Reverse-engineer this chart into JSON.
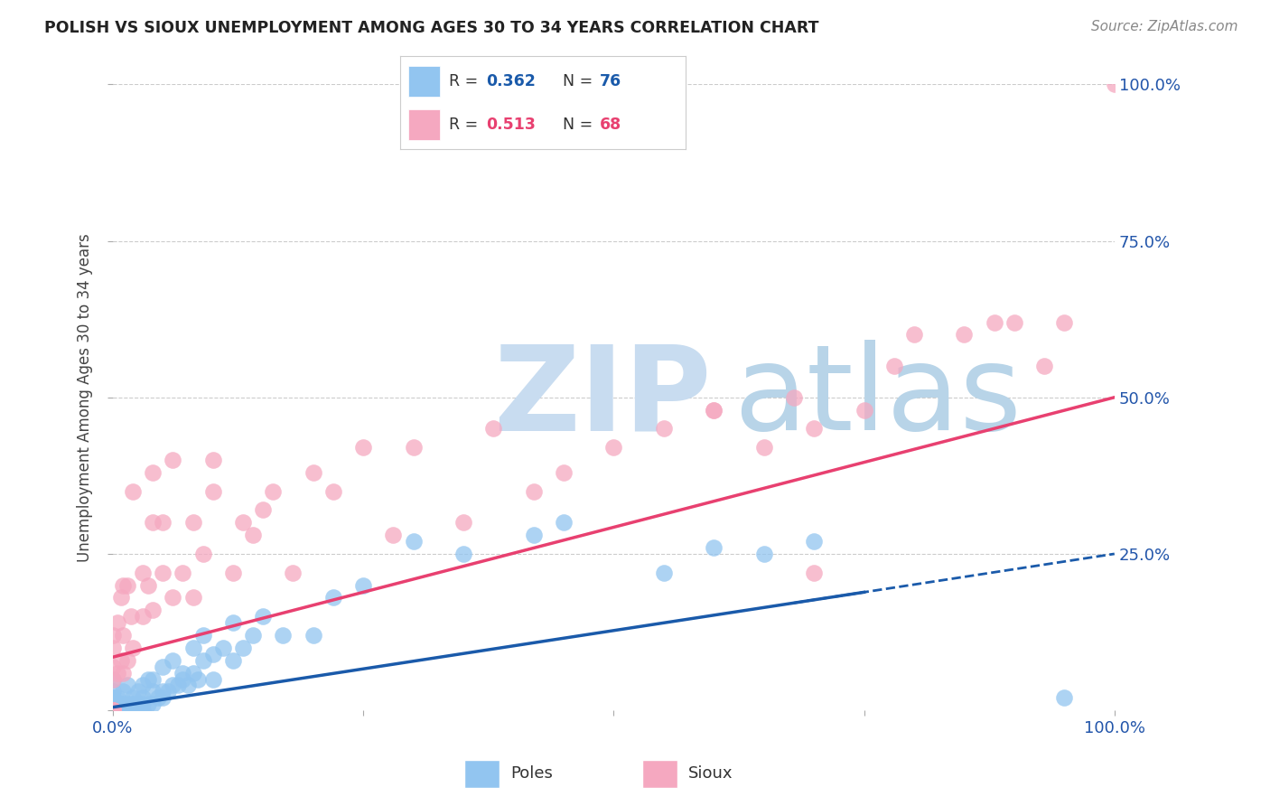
{
  "title": "POLISH VS SIOUX UNEMPLOYMENT AMONG AGES 30 TO 34 YEARS CORRELATION CHART",
  "source": "Source: ZipAtlas.com",
  "ylabel": "Unemployment Among Ages 30 to 34 years",
  "poles_R": 0.362,
  "poles_N": 76,
  "sioux_R": 0.513,
  "sioux_N": 68,
  "xlim": [
    0.0,
    1.0
  ],
  "ylim": [
    0.0,
    1.0
  ],
  "poles_color": "#92C5F0",
  "sioux_color": "#F5A8C0",
  "poles_line_color": "#1A5AAA",
  "sioux_line_color": "#E84070",
  "background_color": "#FFFFFF",
  "watermark_zip": "ZIP",
  "watermark_atlas": "atlas",
  "watermark_color_zip": "#C8DCF0",
  "watermark_color_atlas": "#B8D4E8",
  "poles_line_intercept": 0.005,
  "poles_line_slope": 0.245,
  "sioux_line_intercept": 0.085,
  "sioux_line_slope": 0.415,
  "poles_x": [
    0.0,
    0.0,
    0.0,
    0.0,
    0.0,
    0.0,
    0.0,
    0.0,
    0.0,
    0.0,
    0.0,
    0.0,
    0.005,
    0.005,
    0.005,
    0.008,
    0.008,
    0.01,
    0.01,
    0.01,
    0.012,
    0.015,
    0.015,
    0.015,
    0.018,
    0.02,
    0.02,
    0.02,
    0.025,
    0.025,
    0.03,
    0.03,
    0.03,
    0.03,
    0.035,
    0.035,
    0.04,
    0.04,
    0.04,
    0.045,
    0.05,
    0.05,
    0.05,
    0.055,
    0.06,
    0.06,
    0.065,
    0.07,
    0.07,
    0.075,
    0.08,
    0.08,
    0.085,
    0.09,
    0.09,
    0.1,
    0.1,
    0.11,
    0.12,
    0.12,
    0.13,
    0.14,
    0.15,
    0.17,
    0.2,
    0.22,
    0.25,
    0.3,
    0.35,
    0.42,
    0.45,
    0.55,
    0.6,
    0.65,
    0.7,
    0.95
  ],
  "poles_y": [
    0.0,
    0.0,
    0.0,
    0.0,
    0.0,
    0.0,
    0.01,
    0.01,
    0.02,
    0.02,
    0.03,
    0.05,
    0.0,
    0.01,
    0.02,
    0.0,
    0.01,
    0.0,
    0.01,
    0.03,
    0.0,
    0.0,
    0.01,
    0.04,
    0.01,
    0.0,
    0.01,
    0.02,
    0.01,
    0.03,
    0.0,
    0.01,
    0.02,
    0.04,
    0.01,
    0.05,
    0.01,
    0.03,
    0.05,
    0.02,
    0.02,
    0.03,
    0.07,
    0.03,
    0.04,
    0.08,
    0.04,
    0.05,
    0.06,
    0.04,
    0.06,
    0.1,
    0.05,
    0.08,
    0.12,
    0.05,
    0.09,
    0.1,
    0.08,
    0.14,
    0.1,
    0.12,
    0.15,
    0.12,
    0.12,
    0.18,
    0.2,
    0.27,
    0.25,
    0.28,
    0.3,
    0.22,
    0.26,
    0.25,
    0.27,
    0.02
  ],
  "sioux_x": [
    0.0,
    0.0,
    0.0,
    0.0,
    0.0,
    0.0,
    0.0,
    0.0,
    0.005,
    0.005,
    0.008,
    0.008,
    0.01,
    0.01,
    0.01,
    0.015,
    0.015,
    0.018,
    0.02,
    0.02,
    0.03,
    0.03,
    0.035,
    0.04,
    0.04,
    0.04,
    0.05,
    0.05,
    0.06,
    0.06,
    0.07,
    0.08,
    0.08,
    0.09,
    0.1,
    0.1,
    0.12,
    0.13,
    0.14,
    0.15,
    0.16,
    0.18,
    0.2,
    0.22,
    0.25,
    0.28,
    0.3,
    0.35,
    0.38,
    0.42,
    0.45,
    0.5,
    0.55,
    0.6,
    0.65,
    0.68,
    0.7,
    0.75,
    0.78,
    0.8,
    0.85,
    0.88,
    0.9,
    0.93,
    0.95,
    1.0,
    0.6,
    0.7
  ],
  "sioux_y": [
    0.0,
    0.0,
    0.0,
    0.0,
    0.05,
    0.07,
    0.1,
    0.12,
    0.06,
    0.14,
    0.08,
    0.18,
    0.06,
    0.12,
    0.2,
    0.08,
    0.2,
    0.15,
    0.1,
    0.35,
    0.15,
    0.22,
    0.2,
    0.16,
    0.3,
    0.38,
    0.22,
    0.3,
    0.18,
    0.4,
    0.22,
    0.18,
    0.3,
    0.25,
    0.35,
    0.4,
    0.22,
    0.3,
    0.28,
    0.32,
    0.35,
    0.22,
    0.38,
    0.35,
    0.42,
    0.28,
    0.42,
    0.3,
    0.45,
    0.35,
    0.38,
    0.42,
    0.45,
    0.48,
    0.42,
    0.5,
    0.45,
    0.48,
    0.55,
    0.6,
    0.6,
    0.62,
    0.62,
    0.55,
    0.62,
    1.0,
    0.48,
    0.22
  ]
}
